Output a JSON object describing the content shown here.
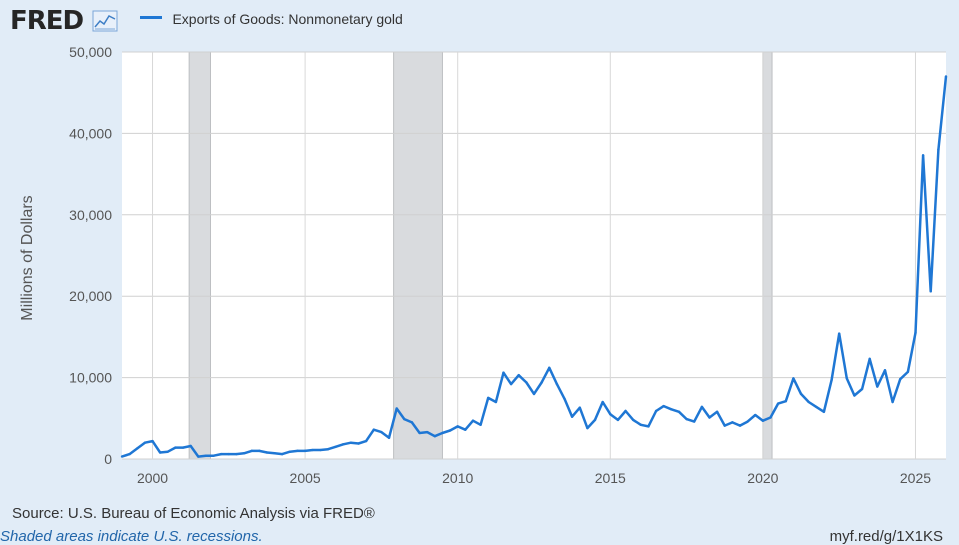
{
  "header": {
    "logo_text": "FRED",
    "legend_label": "Exports of Goods: Nonmonetary gold"
  },
  "footer": {
    "source": "Source: U.S. Bureau of Economic Analysis via FRED®",
    "shaded_note": "Shaded areas indicate U.S. recessions.",
    "short_url": "myf.red/g/1X1KS"
  },
  "colors": {
    "series": "#1f77d4",
    "recession": "#d9dbde",
    "background": "#e1ecf7",
    "plot_bg": "#ffffff"
  },
  "chart_data": {
    "type": "line",
    "title": "",
    "xlabel": "",
    "ylabel": "Millions of Dollars",
    "xlim": [
      1999.0,
      2026.0
    ],
    "ylim": [
      0,
      50000
    ],
    "x_ticks": [
      2000,
      2005,
      2010,
      2015,
      2020,
      2025
    ],
    "x_tick_labels": [
      "2000",
      "2005",
      "2010",
      "2015",
      "2020",
      "2025"
    ],
    "y_ticks": [
      0,
      10000,
      20000,
      30000,
      40000,
      50000
    ],
    "y_tick_labels": [
      "0",
      "10,000",
      "20,000",
      "30,000",
      "40,000",
      "50,000"
    ],
    "grid": true,
    "legend_position": "top-left",
    "recessions": [
      [
        2001.2,
        2001.9
      ],
      [
        2007.9,
        2009.5
      ],
      [
        2020.0,
        2020.3
      ]
    ],
    "series": [
      {
        "name": "Exports of Goods: Nonmonetary gold",
        "x": [
          1999.0,
          1999.25,
          1999.5,
          1999.75,
          2000.0,
          2000.25,
          2000.5,
          2000.75,
          2001.0,
          2001.25,
          2001.5,
          2001.75,
          2002.0,
          2002.25,
          2002.5,
          2002.75,
          2003.0,
          2003.25,
          2003.5,
          2003.75,
          2004.0,
          2004.25,
          2004.5,
          2004.75,
          2005.0,
          2005.25,
          2005.5,
          2005.75,
          2006.0,
          2006.25,
          2006.5,
          2006.75,
          2007.0,
          2007.25,
          2007.5,
          2007.75,
          2008.0,
          2008.25,
          2008.5,
          2008.75,
          2009.0,
          2009.25,
          2009.5,
          2009.75,
          2010.0,
          2010.25,
          2010.5,
          2010.75,
          2011.0,
          2011.25,
          2011.5,
          2011.75,
          2012.0,
          2012.25,
          2012.5,
          2012.75,
          2013.0,
          2013.25,
          2013.5,
          2013.75,
          2014.0,
          2014.25,
          2014.5,
          2014.75,
          2015.0,
          2015.25,
          2015.5,
          2015.75,
          2016.0,
          2016.25,
          2016.5,
          2016.75,
          2017.0,
          2017.25,
          2017.5,
          2017.75,
          2018.0,
          2018.25,
          2018.5,
          2018.75,
          2019.0,
          2019.25,
          2019.5,
          2019.75,
          2020.0,
          2020.25,
          2020.5,
          2020.75,
          2021.0,
          2021.25,
          2021.5,
          2021.75,
          2022.0,
          2022.25,
          2022.5,
          2022.75,
          2023.0,
          2023.25,
          2023.5,
          2023.75,
          2024.0,
          2024.25,
          2024.5,
          2024.75,
          2025.0,
          2025.25,
          2025.5,
          2025.75,
          2026.0
        ],
        "y": [
          300,
          600,
          1300,
          2000,
          2200,
          800,
          900,
          1400,
          1400,
          1600,
          300,
          400,
          400,
          600,
          600,
          600,
          700,
          1000,
          1000,
          800,
          700,
          600,
          900,
          1000,
          1000,
          1100,
          1100,
          1200,
          1500,
          1800,
          2000,
          1900,
          2200,
          3600,
          3300,
          2600,
          6200,
          4900,
          4500,
          3200,
          3300,
          2800,
          3200,
          3500,
          4000,
          3600,
          4700,
          4200,
          7500,
          7000,
          10600,
          9200,
          10300,
          9400,
          8000,
          9400,
          11200,
          9200,
          7400,
          5200,
          6300,
          3800,
          4800,
          7000,
          5500,
          4800,
          5900,
          4800,
          4200,
          4000,
          5900,
          6500,
          6100,
          5800,
          4900,
          4600,
          6400,
          5100,
          5800,
          4100,
          4500,
          4100,
          4600,
          5400,
          4700,
          5100,
          6800,
          7100,
          9900,
          8000,
          7000,
          6400,
          5800,
          9700,
          15400,
          9900,
          7800,
          8600,
          12300,
          8900,
          10900,
          7000,
          9800,
          10700,
          15500,
          37300,
          20600,
          38000,
          47000
        ]
      }
    ]
  }
}
